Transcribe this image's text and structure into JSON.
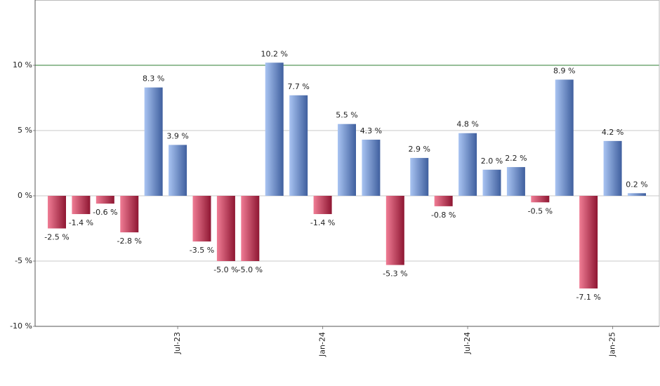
{
  "chart_data": {
    "type": "bar",
    "categories": [
      null,
      null,
      null,
      null,
      null,
      "Jul-23",
      null,
      null,
      null,
      null,
      null,
      "Jan-24",
      null,
      null,
      null,
      null,
      null,
      "Jul-24",
      null,
      null,
      null,
      null,
      null,
      "Jan-25",
      null
    ],
    "values": [
      -2.5,
      -1.4,
      -0.6,
      -2.8,
      8.3,
      3.9,
      -3.5,
      -5.0,
      -5.0,
      10.2,
      7.7,
      -1.4,
      5.5,
      4.3,
      -5.3,
      2.9,
      -0.8,
      4.8,
      2.0,
      2.2,
      -0.5,
      8.9,
      -7.1,
      4.2,
      0.2
    ],
    "value_labels": [
      "-2.5 %",
      "-1.4 %",
      "-0.6 %",
      "-2.8 %",
      "8.3 %",
      "3.9 %",
      "-3.5 %",
      "-5.0 %",
      "-5.0 %",
      "10.2 %",
      "7.7 %",
      "-1.4 %",
      "5.5 %",
      "4.3 %",
      "-5.3 %",
      "2.9 %",
      "-0.8 %",
      "4.8 %",
      "2.0 %",
      "2.2 %",
      "-0.5 %",
      "8.9 %",
      "-7.1 %",
      "4.2 %",
      "0.2 %"
    ],
    "positive_colors": [
      "#a9c4f2",
      "#3f5f9e"
    ],
    "negative_colors": [
      "#f07d95",
      "#8e1632"
    ],
    "ylim": [
      -10,
      15
    ],
    "yticks": [
      {
        "value": -10,
        "label": "-10 %"
      },
      {
        "value": -5,
        "label": "-5 %"
      },
      {
        "value": 0,
        "label": "0 %"
      },
      {
        "value": 5,
        "label": "5 %"
      },
      {
        "value": 10,
        "label": "10 %"
      }
    ],
    "grid": true,
    "reference_line": {
      "value": 10,
      "color": "#2e7d32"
    }
  }
}
